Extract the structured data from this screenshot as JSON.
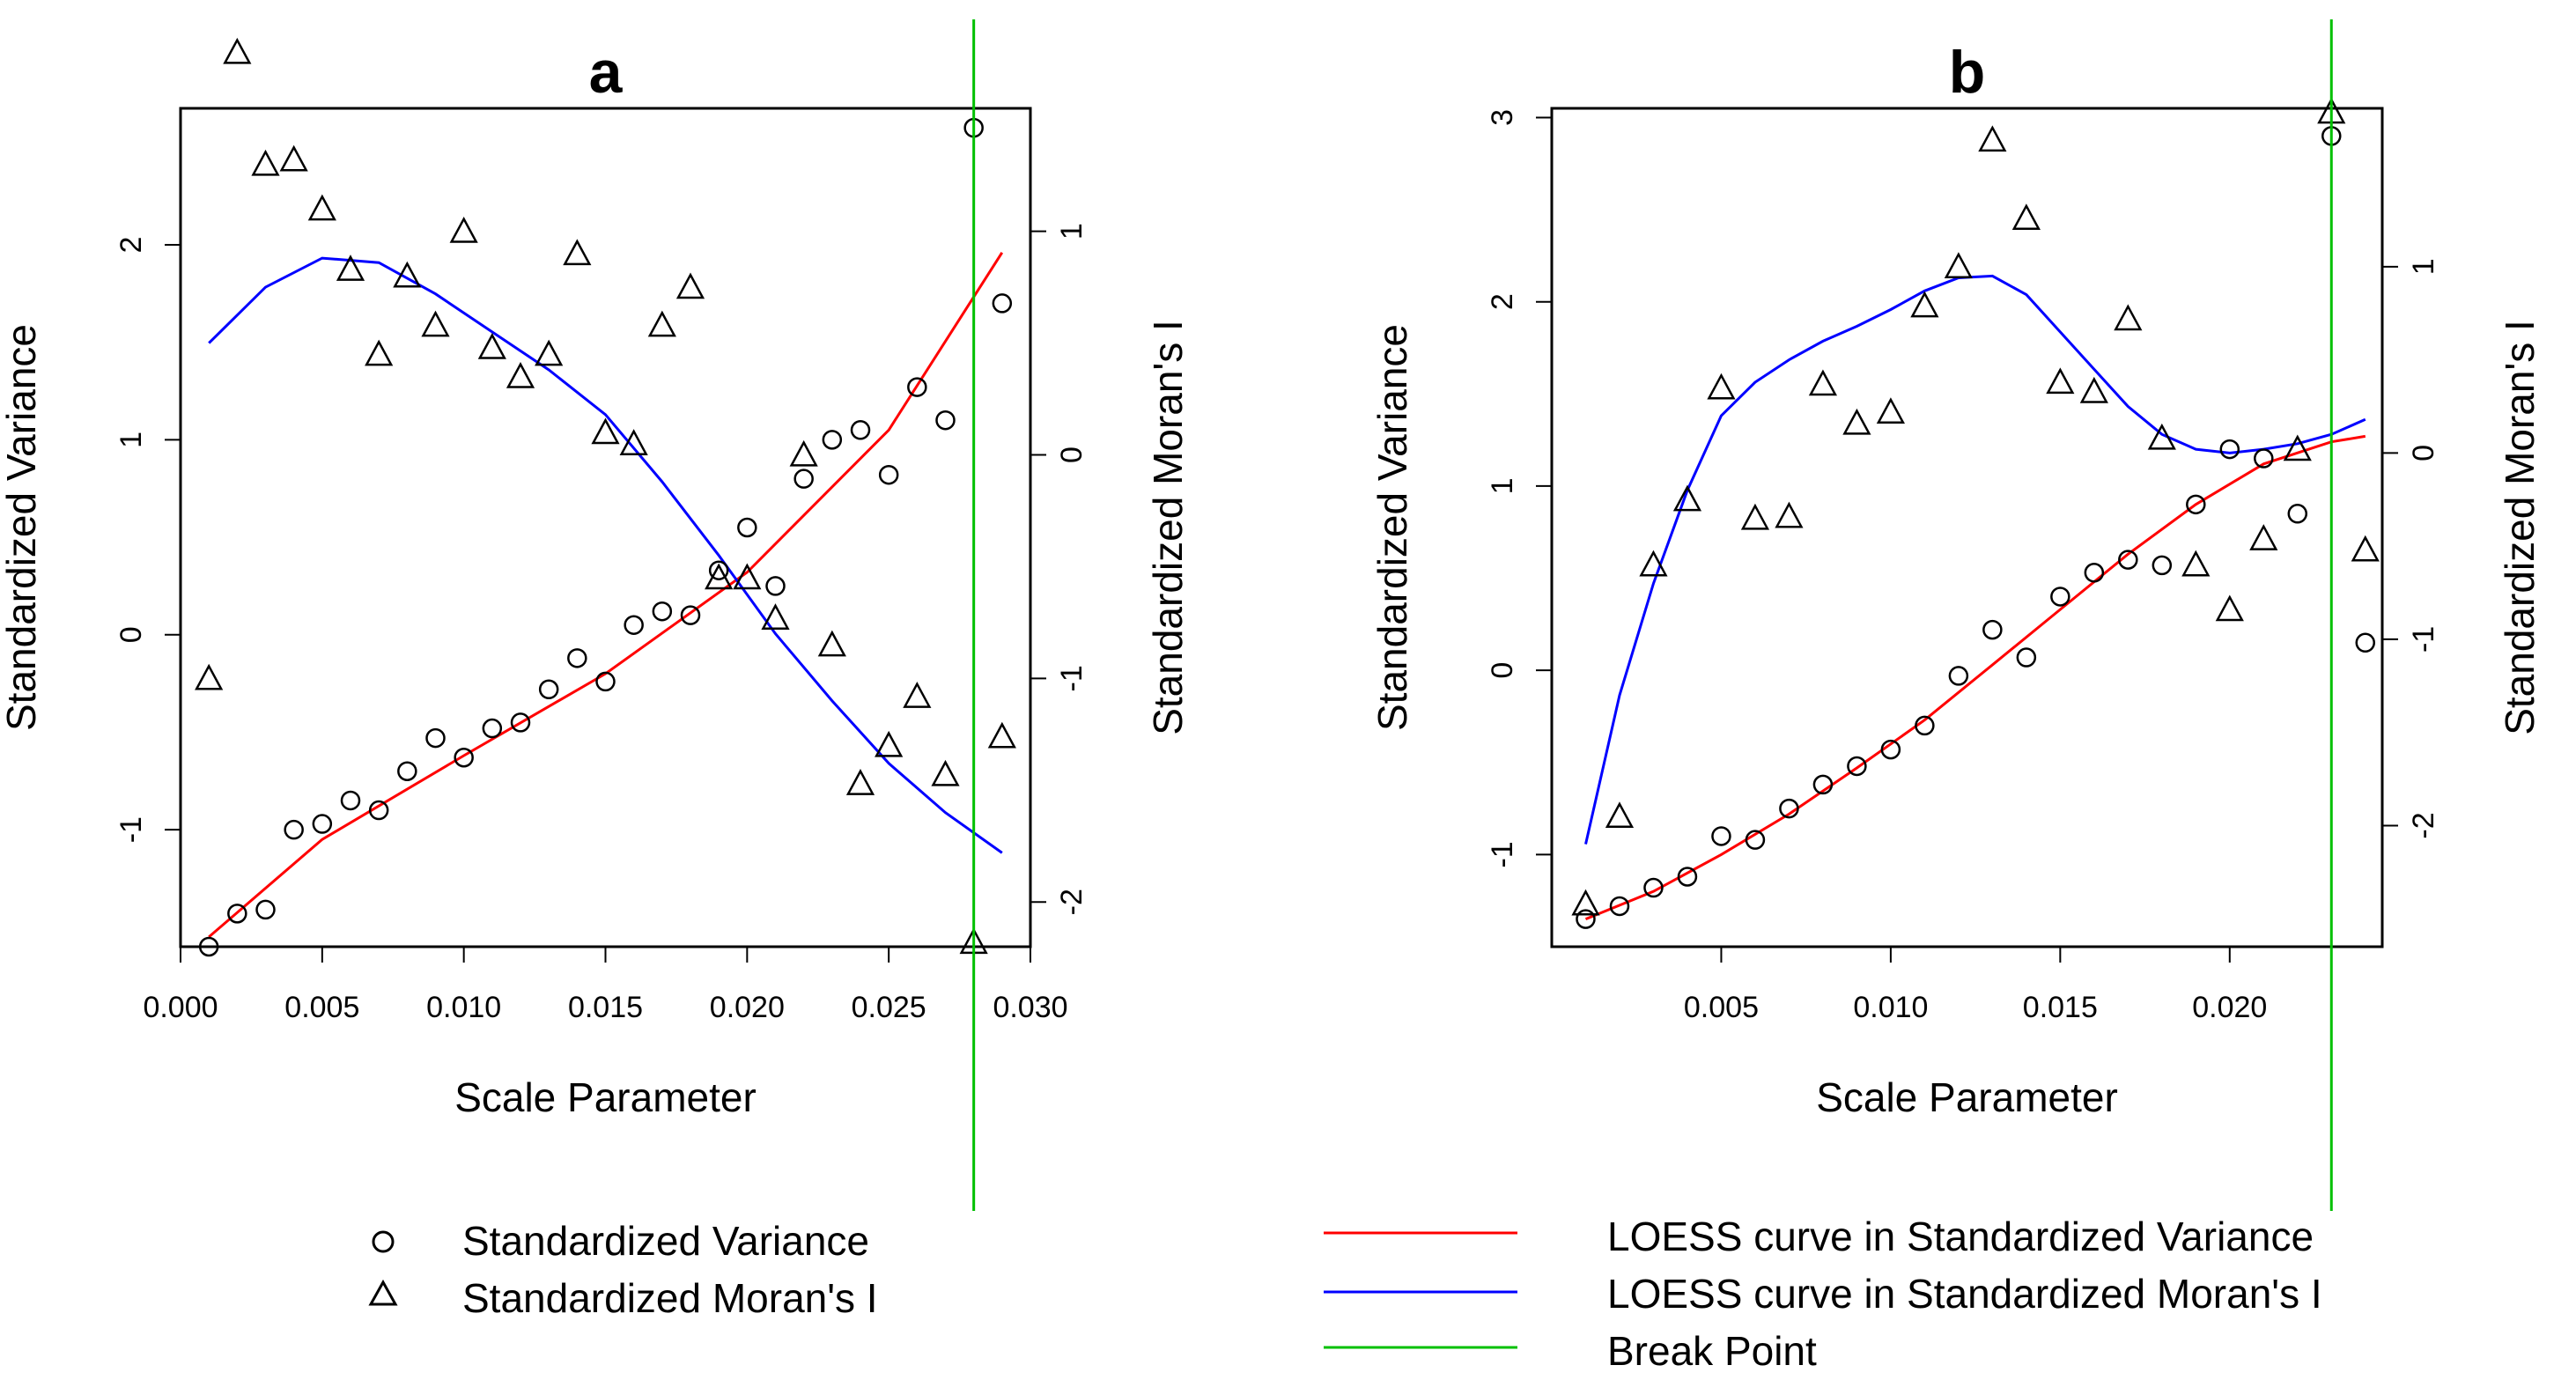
{
  "colors": {
    "variance_curve": "#ff0000",
    "moran_curve": "#0000ff",
    "break_point": "#00c000",
    "points": "#000000"
  },
  "legend": {
    "left": [
      {
        "symbol": "circle",
        "label": "Standardized Variance"
      },
      {
        "symbol": "triangle",
        "label": "Standardized Moran's I"
      }
    ],
    "right": [
      {
        "symbol": "line",
        "color": "#ff0000",
        "label": "LOESS curve in Standardized Variance"
      },
      {
        "symbol": "line",
        "color": "#0000ff",
        "label": "LOESS curve in Standardized Moran's I"
      },
      {
        "symbol": "line",
        "color": "#00c000",
        "label": "Break Point"
      }
    ]
  },
  "chart_data": [
    {
      "type": "scatter",
      "title": "a",
      "xlabel": "Scale Parameter",
      "ylabel": "Standardized Variance",
      "y2label": "Standardized Moran's I",
      "xlim": [
        0.0,
        0.03
      ],
      "ylim": [
        -1.6,
        2.7
      ],
      "y2lim": [
        -2.2,
        1.55
      ],
      "xticks": [
        0.0,
        0.005,
        0.01,
        0.015,
        0.02,
        0.025,
        0.03
      ],
      "xtick_labels": [
        "0.000",
        "0.005",
        "0.010",
        "0.015",
        "0.020",
        "0.025",
        "0.030"
      ],
      "yticks": [
        -1,
        0,
        1,
        2
      ],
      "ytick_labels": [
        "-1",
        "0",
        "1",
        "2"
      ],
      "y2ticks": [
        -2,
        -1,
        0,
        1
      ],
      "y2tick_labels": [
        "-2",
        "-1",
        "0",
        "1"
      ],
      "break_point": 0.028,
      "variance": {
        "x": [
          0.001,
          0.002,
          0.003,
          0.004,
          0.005,
          0.006,
          0.007,
          0.008,
          0.009,
          0.01,
          0.011,
          0.012,
          0.013,
          0.014,
          0.015,
          0.016,
          0.017,
          0.018,
          0.019,
          0.02,
          0.021,
          0.022,
          0.023,
          0.024,
          0.025,
          0.026,
          0.027,
          0.028,
          0.029
        ],
        "y": [
          -1.6,
          -1.43,
          -1.41,
          -1.0,
          -0.97,
          -0.85,
          -0.9,
          -0.7,
          -0.53,
          -0.63,
          -0.48,
          -0.45,
          -0.28,
          -0.12,
          -0.24,
          0.05,
          0.12,
          0.1,
          0.33,
          0.55,
          0.25,
          0.8,
          1.0,
          1.05,
          0.82,
          1.27,
          1.1,
          2.6,
          1.7
        ]
      },
      "moran": {
        "x": [
          0.001,
          0.002,
          0.003,
          0.004,
          0.005,
          0.006,
          0.007,
          0.008,
          0.009,
          0.01,
          0.011,
          0.012,
          0.013,
          0.014,
          0.015,
          0.016,
          0.017,
          0.018,
          0.019,
          0.02,
          0.021,
          0.022,
          0.023,
          0.024,
          0.025,
          0.026,
          0.027,
          0.028,
          0.029
        ],
        "y": [
          -1.0,
          1.8,
          1.3,
          1.32,
          1.1,
          0.83,
          0.45,
          0.8,
          0.58,
          1.0,
          0.48,
          0.35,
          0.45,
          0.9,
          0.1,
          0.05,
          0.58,
          0.75,
          -0.55,
          -0.55,
          -0.73,
          0.0,
          -0.85,
          -1.47,
          -1.3,
          -1.08,
          -1.43,
          -2.18,
          -1.26
        ]
      },
      "variance_loess": {
        "x": [
          0.001,
          0.005,
          0.01,
          0.015,
          0.02,
          0.025,
          0.029
        ],
        "y": [
          -1.55,
          -1.05,
          -0.62,
          -0.2,
          0.32,
          1.05,
          1.96
        ]
      },
      "moran_loess": {
        "x": [
          0.001,
          0.003,
          0.005,
          0.007,
          0.009,
          0.011,
          0.013,
          0.015,
          0.017,
          0.019,
          0.021,
          0.023,
          0.025,
          0.027,
          0.029
        ],
        "y": [
          0.5,
          0.75,
          0.88,
          0.86,
          0.72,
          0.55,
          0.38,
          0.18,
          -0.12,
          -0.45,
          -0.8,
          -1.1,
          -1.38,
          -1.6,
          -1.78
        ]
      }
    },
    {
      "type": "scatter",
      "title": "b",
      "xlabel": "Scale Parameter",
      "ylabel": "Standardized Variance",
      "y2label": "Standardized Moran's I",
      "xlim": [
        0.0,
        0.0245
      ],
      "ylim": [
        -1.5,
        3.05
      ],
      "y2lim": [
        -2.65,
        1.85
      ],
      "xticks": [
        0.005,
        0.01,
        0.015,
        0.02
      ],
      "xtick_labels": [
        "0.005",
        "0.010",
        "0.015",
        "0.020"
      ],
      "yticks": [
        -1,
        0,
        1,
        2,
        3
      ],
      "ytick_labels": [
        "-1",
        "0",
        "1",
        "2",
        "3"
      ],
      "y2ticks": [
        -2,
        -1,
        0,
        1
      ],
      "y2tick_labels": [
        "-2",
        "-1",
        "0",
        "1"
      ],
      "break_point": 0.023,
      "variance": {
        "x": [
          0.001,
          0.002,
          0.003,
          0.004,
          0.005,
          0.006,
          0.007,
          0.008,
          0.009,
          0.01,
          0.011,
          0.012,
          0.013,
          0.014,
          0.015,
          0.016,
          0.017,
          0.018,
          0.019,
          0.02,
          0.021,
          0.022,
          0.023,
          0.024
        ],
        "y": [
          -1.35,
          -1.28,
          -1.18,
          -1.12,
          -0.9,
          -0.92,
          -0.75,
          -0.62,
          -0.52,
          -0.43,
          -0.3,
          -0.03,
          0.22,
          0.07,
          0.4,
          0.53,
          0.6,
          0.57,
          0.9,
          1.2,
          1.15,
          0.85,
          2.9,
          0.15
        ]
      },
      "moran": {
        "x": [
          0.001,
          0.002,
          0.003,
          0.004,
          0.005,
          0.006,
          0.007,
          0.008,
          0.009,
          0.01,
          0.011,
          0.012,
          0.013,
          0.014,
          0.015,
          0.016,
          0.017,
          0.018,
          0.019,
          0.02,
          0.021,
          0.022,
          0.023,
          0.024
        ],
        "y": [
          -2.42,
          -1.95,
          -0.6,
          -0.25,
          0.35,
          -0.35,
          -0.34,
          0.37,
          0.16,
          0.22,
          0.79,
          1.0,
          1.68,
          1.26,
          0.38,
          0.33,
          0.72,
          0.08,
          -0.6,
          -0.84,
          -0.46,
          0.02,
          1.83,
          -0.52
        ]
      },
      "variance_loess": {
        "x": [
          0.001,
          0.003,
          0.005,
          0.007,
          0.009,
          0.011,
          0.013,
          0.015,
          0.017,
          0.019,
          0.021,
          0.023,
          0.024
        ],
        "y": [
          -1.35,
          -1.2,
          -1.0,
          -0.78,
          -0.53,
          -0.27,
          0.03,
          0.33,
          0.63,
          0.9,
          1.12,
          1.24,
          1.27
        ]
      },
      "moran_loess": {
        "x": [
          0.001,
          0.002,
          0.003,
          0.004,
          0.005,
          0.006,
          0.007,
          0.008,
          0.009,
          0.01,
          0.011,
          0.012,
          0.013,
          0.014,
          0.015,
          0.016,
          0.017,
          0.018,
          0.019,
          0.02,
          0.021,
          0.022,
          0.023,
          0.024
        ],
        "y": [
          -2.1,
          -1.3,
          -0.7,
          -0.2,
          0.2,
          0.38,
          0.5,
          0.6,
          0.68,
          0.77,
          0.87,
          0.94,
          0.95,
          0.85,
          0.65,
          0.45,
          0.25,
          0.1,
          0.02,
          0.0,
          0.02,
          0.05,
          0.1,
          0.18
        ]
      }
    }
  ]
}
